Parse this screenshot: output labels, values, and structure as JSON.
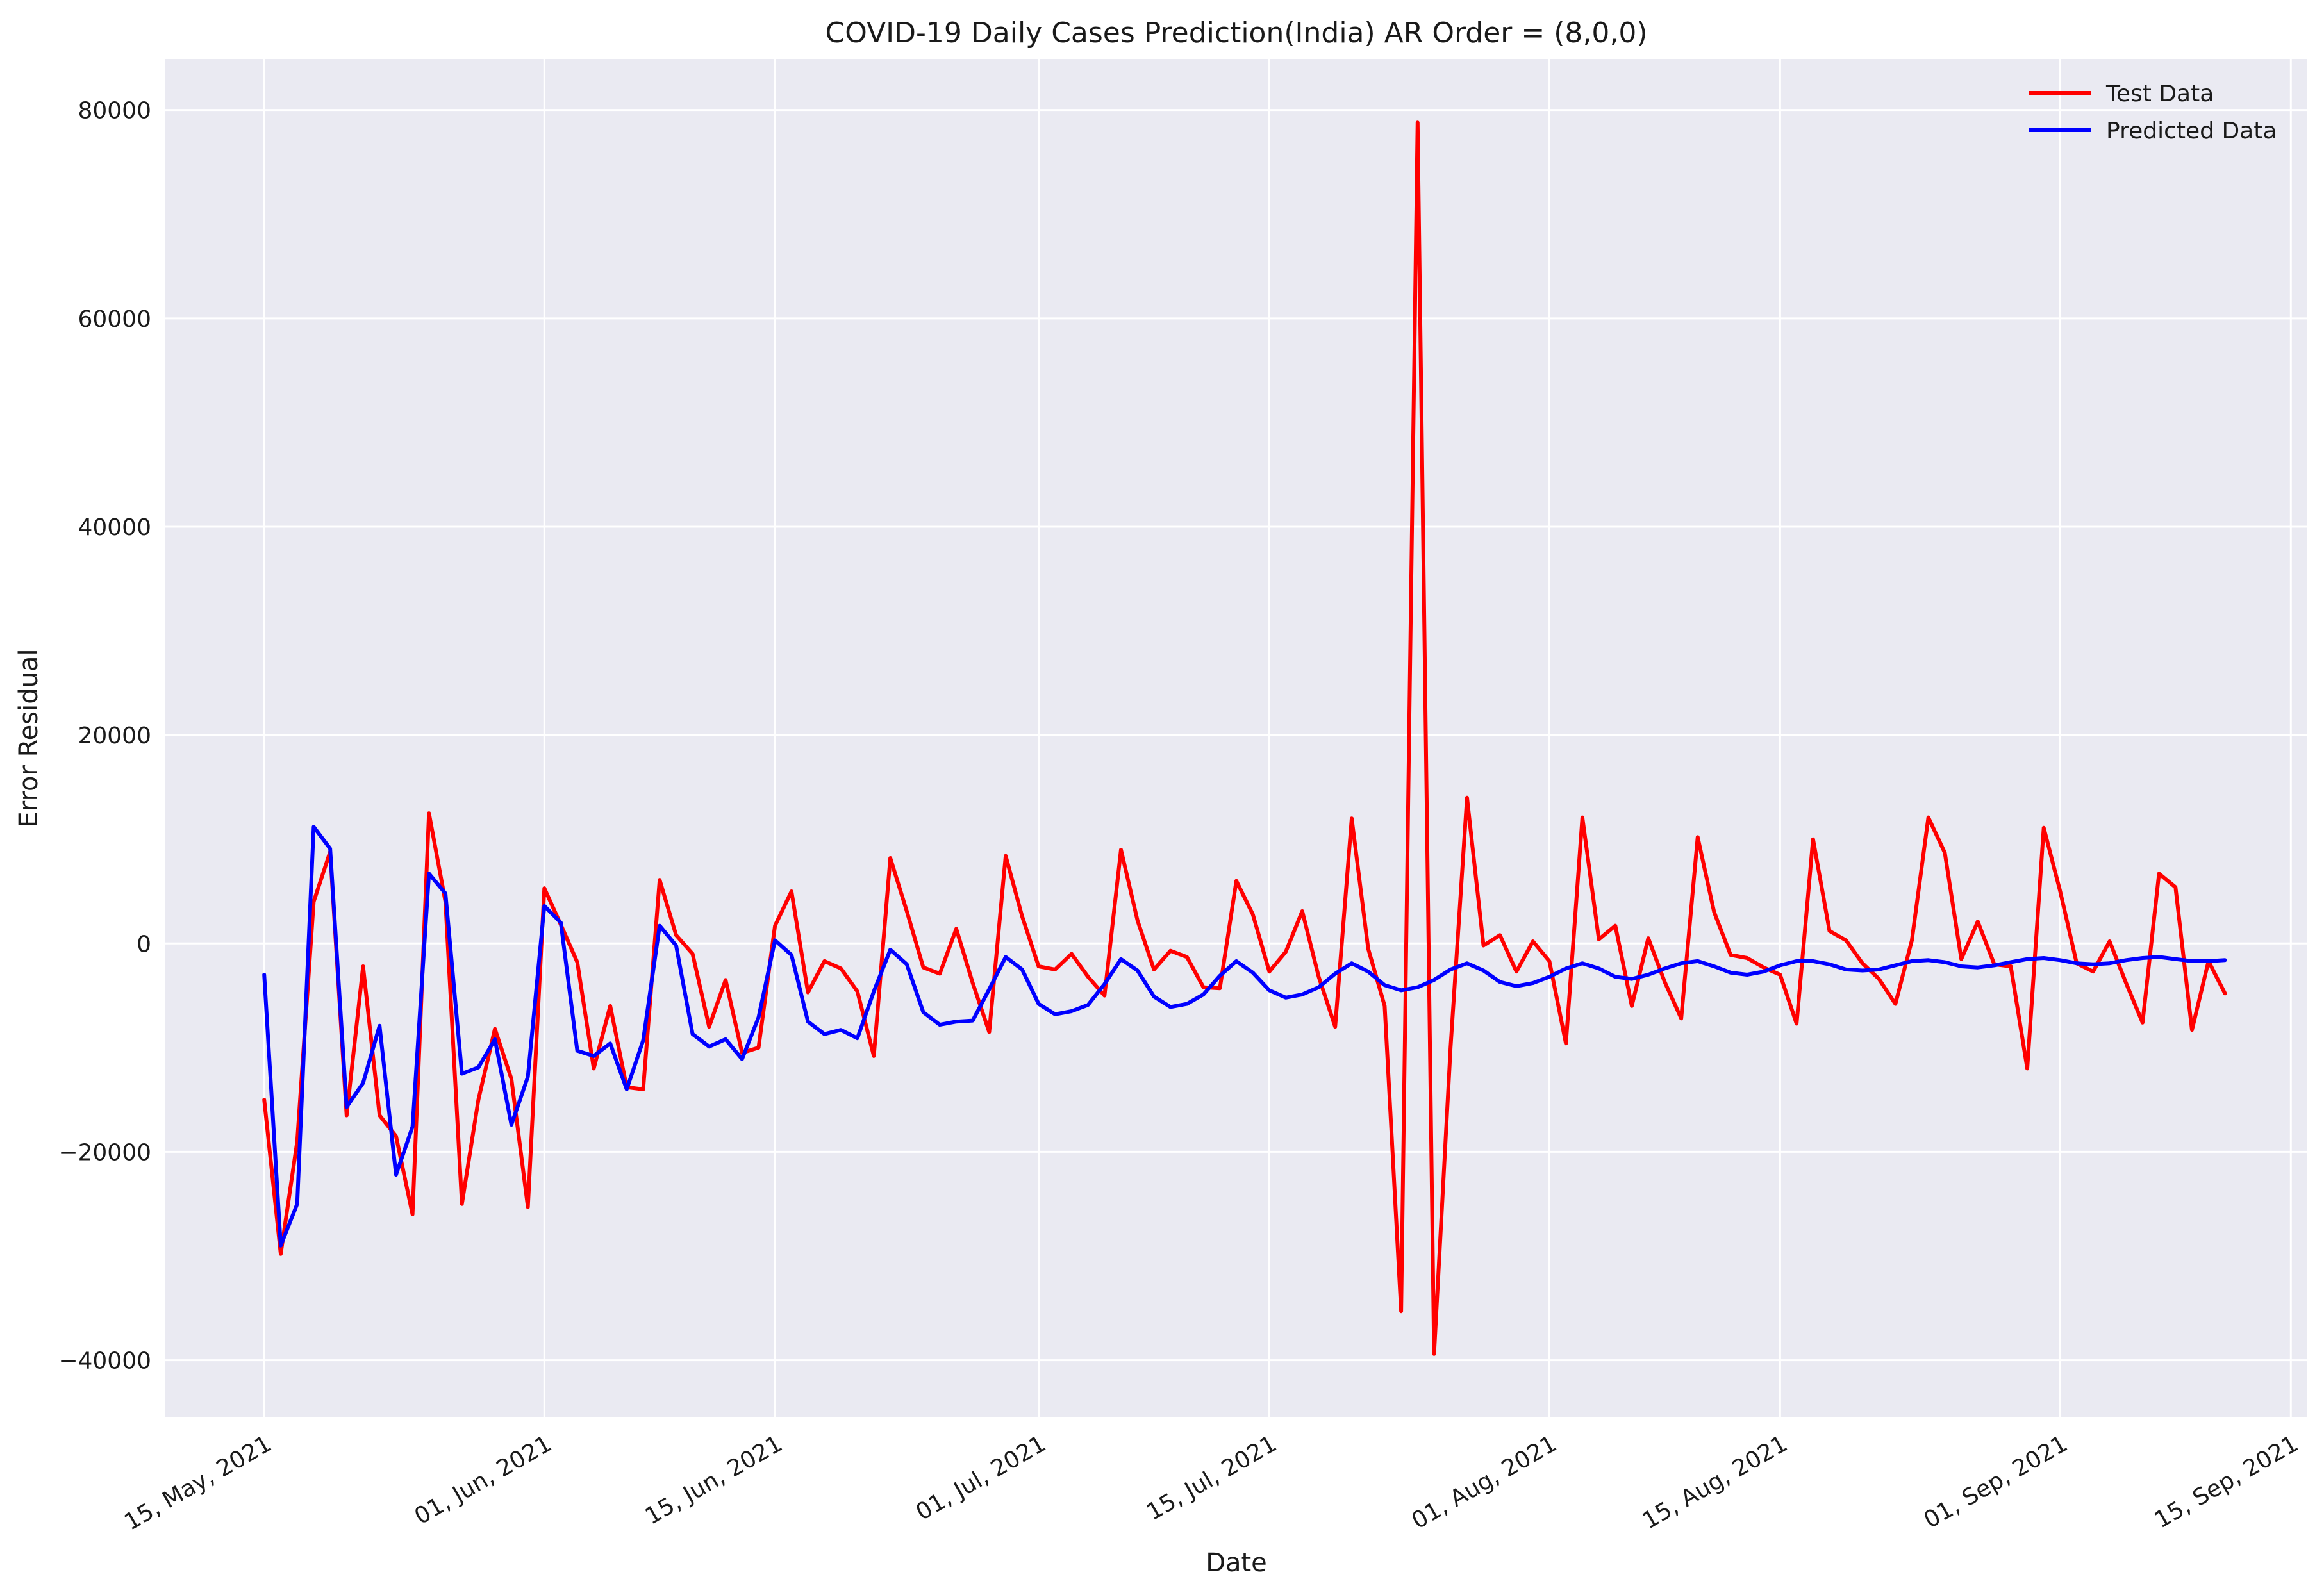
{
  "chart_data": {
    "type": "line",
    "title": "COVID-19 Daily Cases Prediction(India) AR Order = (8,0,0)",
    "xlabel": "Date",
    "ylabel": "Error Residual",
    "x": [
      "2021-05-15",
      "2021-05-16",
      "2021-05-17",
      "2021-05-18",
      "2021-05-19",
      "2021-05-20",
      "2021-05-21",
      "2021-05-22",
      "2021-05-23",
      "2021-05-24",
      "2021-05-25",
      "2021-05-26",
      "2021-05-27",
      "2021-05-28",
      "2021-05-29",
      "2021-05-30",
      "2021-05-31",
      "2021-06-01",
      "2021-06-02",
      "2021-06-03",
      "2021-06-04",
      "2021-06-05",
      "2021-06-06",
      "2021-06-07",
      "2021-06-08",
      "2021-06-09",
      "2021-06-10",
      "2021-06-11",
      "2021-06-12",
      "2021-06-13",
      "2021-06-14",
      "2021-06-15",
      "2021-06-16",
      "2021-06-17",
      "2021-06-18",
      "2021-06-19",
      "2021-06-20",
      "2021-06-21",
      "2021-06-22",
      "2021-06-23",
      "2021-06-24",
      "2021-06-25",
      "2021-06-26",
      "2021-06-27",
      "2021-06-28",
      "2021-06-29",
      "2021-06-30",
      "2021-07-01",
      "2021-07-02",
      "2021-07-03",
      "2021-07-04",
      "2021-07-05",
      "2021-07-06",
      "2021-07-07",
      "2021-07-08",
      "2021-07-09",
      "2021-07-10",
      "2021-07-11",
      "2021-07-12",
      "2021-07-13",
      "2021-07-14",
      "2021-07-15",
      "2021-07-16",
      "2021-07-17",
      "2021-07-18",
      "2021-07-19",
      "2021-07-20",
      "2021-07-21",
      "2021-07-22",
      "2021-07-23",
      "2021-07-24",
      "2021-07-25",
      "2021-07-26",
      "2021-07-27",
      "2021-07-28",
      "2021-07-29",
      "2021-07-30",
      "2021-07-31",
      "2021-08-01",
      "2021-08-02",
      "2021-08-03",
      "2021-08-04",
      "2021-08-05",
      "2021-08-06",
      "2021-08-07",
      "2021-08-08",
      "2021-08-09",
      "2021-08-10",
      "2021-08-11",
      "2021-08-12",
      "2021-08-13",
      "2021-08-14",
      "2021-08-15",
      "2021-08-16",
      "2021-08-17",
      "2021-08-18",
      "2021-08-19",
      "2021-08-20",
      "2021-08-21",
      "2021-08-22",
      "2021-08-23",
      "2021-08-24",
      "2021-08-25",
      "2021-08-26",
      "2021-08-27",
      "2021-08-28",
      "2021-08-29",
      "2021-08-30",
      "2021-08-31",
      "2021-09-01",
      "2021-09-02",
      "2021-09-03",
      "2021-09-04",
      "2021-09-05",
      "2021-09-06",
      "2021-09-07",
      "2021-09-08",
      "2021-09-09",
      "2021-09-10",
      "2021-09-11"
    ],
    "series": [
      {
        "name": "Test Data",
        "color": "#ff0000",
        "values": [
          -15000,
          -29800,
          -19000,
          4000,
          8800,
          -16500,
          -2200,
          -16500,
          -18500,
          -26000,
          12500,
          4000,
          -25000,
          -15000,
          -8200,
          -13000,
          -25300,
          5300,
          1800,
          -1800,
          -12000,
          -6000,
          -13800,
          -14000,
          6100,
          800,
          -1000,
          -8000,
          -3500,
          -10500,
          -10000,
          1700,
          5000,
          -4700,
          -1700,
          -2400,
          -4600,
          -10800,
          8200,
          3100,
          -2300,
          -2900,
          1400,
          -3800,
          -8500,
          8400,
          2600,
          -2200,
          -2500,
          -1000,
          -3200,
          -5000,
          9000,
          2200,
          -2500,
          -700,
          -1300,
          -4200,
          -4300,
          6000,
          2800,
          -2700,
          -800,
          3100,
          -3200,
          -8000,
          12000,
          -500,
          -6000,
          -35300,
          78800,
          -39400,
          -10000,
          14000,
          -200,
          800,
          -2700,
          200,
          -1700,
          -9600,
          12100,
          400,
          1700,
          -6000,
          500,
          -3700,
          -7200,
          10200,
          3000,
          -1100,
          -1400,
          -2300,
          -3000,
          -7700,
          10000,
          1200,
          300,
          -1900,
          -3400,
          -5800,
          300,
          12100,
          8700,
          -1500,
          2100,
          -2000,
          -2200,
          -12000,
          11100,
          5000,
          -1900,
          -2700,
          200,
          -3800,
          -7600,
          6700,
          5400,
          -8300,
          -1700,
          -4800
        ]
      },
      {
        "name": "Predicted Data",
        "color": "#0000ff",
        "values": [
          -3000,
          -29000,
          -25000,
          11200,
          9100,
          -15700,
          -13400,
          -7900,
          -22200,
          -17600,
          6700,
          4800,
          -12500,
          -11900,
          -9200,
          -17400,
          -12800,
          3600,
          2000,
          -10300,
          -10800,
          -9600,
          -14000,
          -9300,
          1700,
          -200,
          -8700,
          -9900,
          -9200,
          -11100,
          -7100,
          300,
          -1100,
          -7500,
          -8700,
          -8300,
          -9100,
          -4600,
          -600,
          -2000,
          -6600,
          -7800,
          -7500,
          -7400,
          -4400,
          -1300,
          -2500,
          -5800,
          -6800,
          -6500,
          -5900,
          -3900,
          -1500,
          -2600,
          -5100,
          -6100,
          -5800,
          -4900,
          -3100,
          -1700,
          -2800,
          -4500,
          -5200,
          -4900,
          -4200,
          -2900,
          -1900,
          -2700,
          -4000,
          -4500,
          -4200,
          -3500,
          -2500,
          -1900,
          -2600,
          -3700,
          -4100,
          -3800,
          -3200,
          -2400,
          -1900,
          -2400,
          -3200,
          -3400,
          -3000,
          -2400,
          -1900,
          -1700,
          -2200,
          -2800,
          -3000,
          -2700,
          -2100,
          -1700,
          -1700,
          -2000,
          -2500,
          -2600,
          -2500,
          -2100,
          -1700,
          -1600,
          -1800,
          -2200,
          -2300,
          -2100,
          -1800,
          -1500,
          -1400,
          -1600,
          -1900,
          -2000,
          -1900,
          -1600,
          -1400,
          -1300,
          -1500,
          -1700,
          -1700,
          -1600
        ]
      }
    ],
    "x_ticks": [
      {
        "date": "2021-05-15",
        "label": "15, May, 2021"
      },
      {
        "date": "2021-06-01",
        "label": "01, Jun, 2021"
      },
      {
        "date": "2021-06-15",
        "label": "15, Jun, 2021"
      },
      {
        "date": "2021-07-01",
        "label": "01, Jul, 2021"
      },
      {
        "date": "2021-07-15",
        "label": "15, Jul, 2021"
      },
      {
        "date": "2021-08-01",
        "label": "01, Aug, 2021"
      },
      {
        "date": "2021-08-15",
        "label": "15, Aug, 2021"
      },
      {
        "date": "2021-09-01",
        "label": "01, Sep, 2021"
      },
      {
        "date": "2021-09-15",
        "label": "15, Sep, 2021"
      }
    ],
    "y_ticks": [
      -40000,
      -20000,
      0,
      20000,
      40000,
      60000,
      80000
    ],
    "ylim": [
      -45500,
      84900
    ],
    "xlim": [
      "2021-05-09",
      "2021-09-16"
    ],
    "grid": true,
    "background": "#eaeaf2",
    "legend_position": "top-right"
  }
}
